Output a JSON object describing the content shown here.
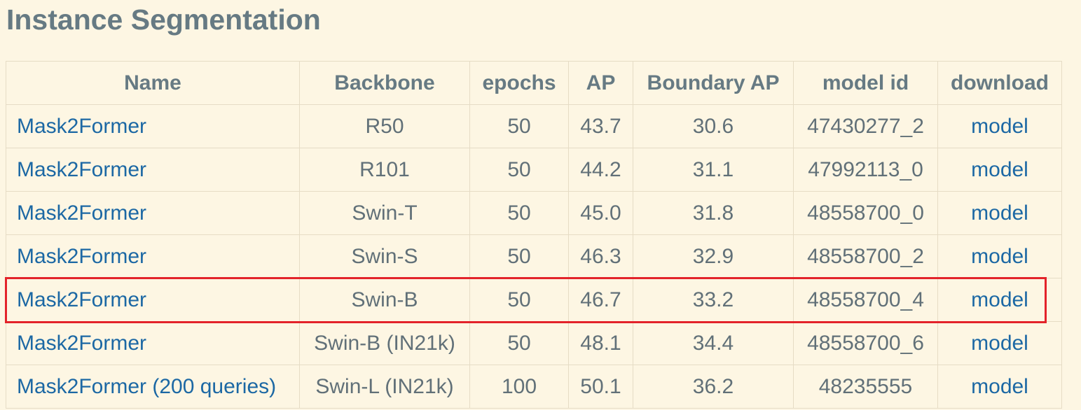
{
  "page": {
    "heading": "Instance Segmentation"
  },
  "table": {
    "headers": [
      "Name",
      "Backbone",
      "epochs",
      "AP",
      "Boundary AP",
      "model id",
      "download"
    ],
    "rows": [
      {
        "name": "Mask2Former",
        "backbone": "R50",
        "epochs": "50",
        "ap": "43.7",
        "boundary_ap": "30.6",
        "model_id": "47430277_2",
        "download": "model"
      },
      {
        "name": "Mask2Former",
        "backbone": "R101",
        "epochs": "50",
        "ap": "44.2",
        "boundary_ap": "31.1",
        "model_id": "47992113_0",
        "download": "model"
      },
      {
        "name": "Mask2Former",
        "backbone": "Swin-T",
        "epochs": "50",
        "ap": "45.0",
        "boundary_ap": "31.8",
        "model_id": "48558700_0",
        "download": "model"
      },
      {
        "name": "Mask2Former",
        "backbone": "Swin-S",
        "epochs": "50",
        "ap": "46.3",
        "boundary_ap": "32.9",
        "model_id": "48558700_2",
        "download": "model"
      },
      {
        "name": "Mask2Former",
        "backbone": "Swin-B",
        "epochs": "50",
        "ap": "46.7",
        "boundary_ap": "33.2",
        "model_id": "48558700_4",
        "download": "model"
      },
      {
        "name": "Mask2Former",
        "backbone": "Swin-B (IN21k)",
        "epochs": "50",
        "ap": "48.1",
        "boundary_ap": "34.4",
        "model_id": "48558700_6",
        "download": "model"
      },
      {
        "name": "Mask2Former (200 queries)",
        "backbone": "Swin-L (IN21k)",
        "epochs": "100",
        "ap": "50.1",
        "boundary_ap": "36.2",
        "model_id": "48235555",
        "download": "model"
      }
    ]
  },
  "colors": {
    "background": "#fdf6e3",
    "link": "#1c68a4",
    "text": "#617078",
    "grid": "#e6dcc5",
    "highlight": "#e3232a"
  }
}
